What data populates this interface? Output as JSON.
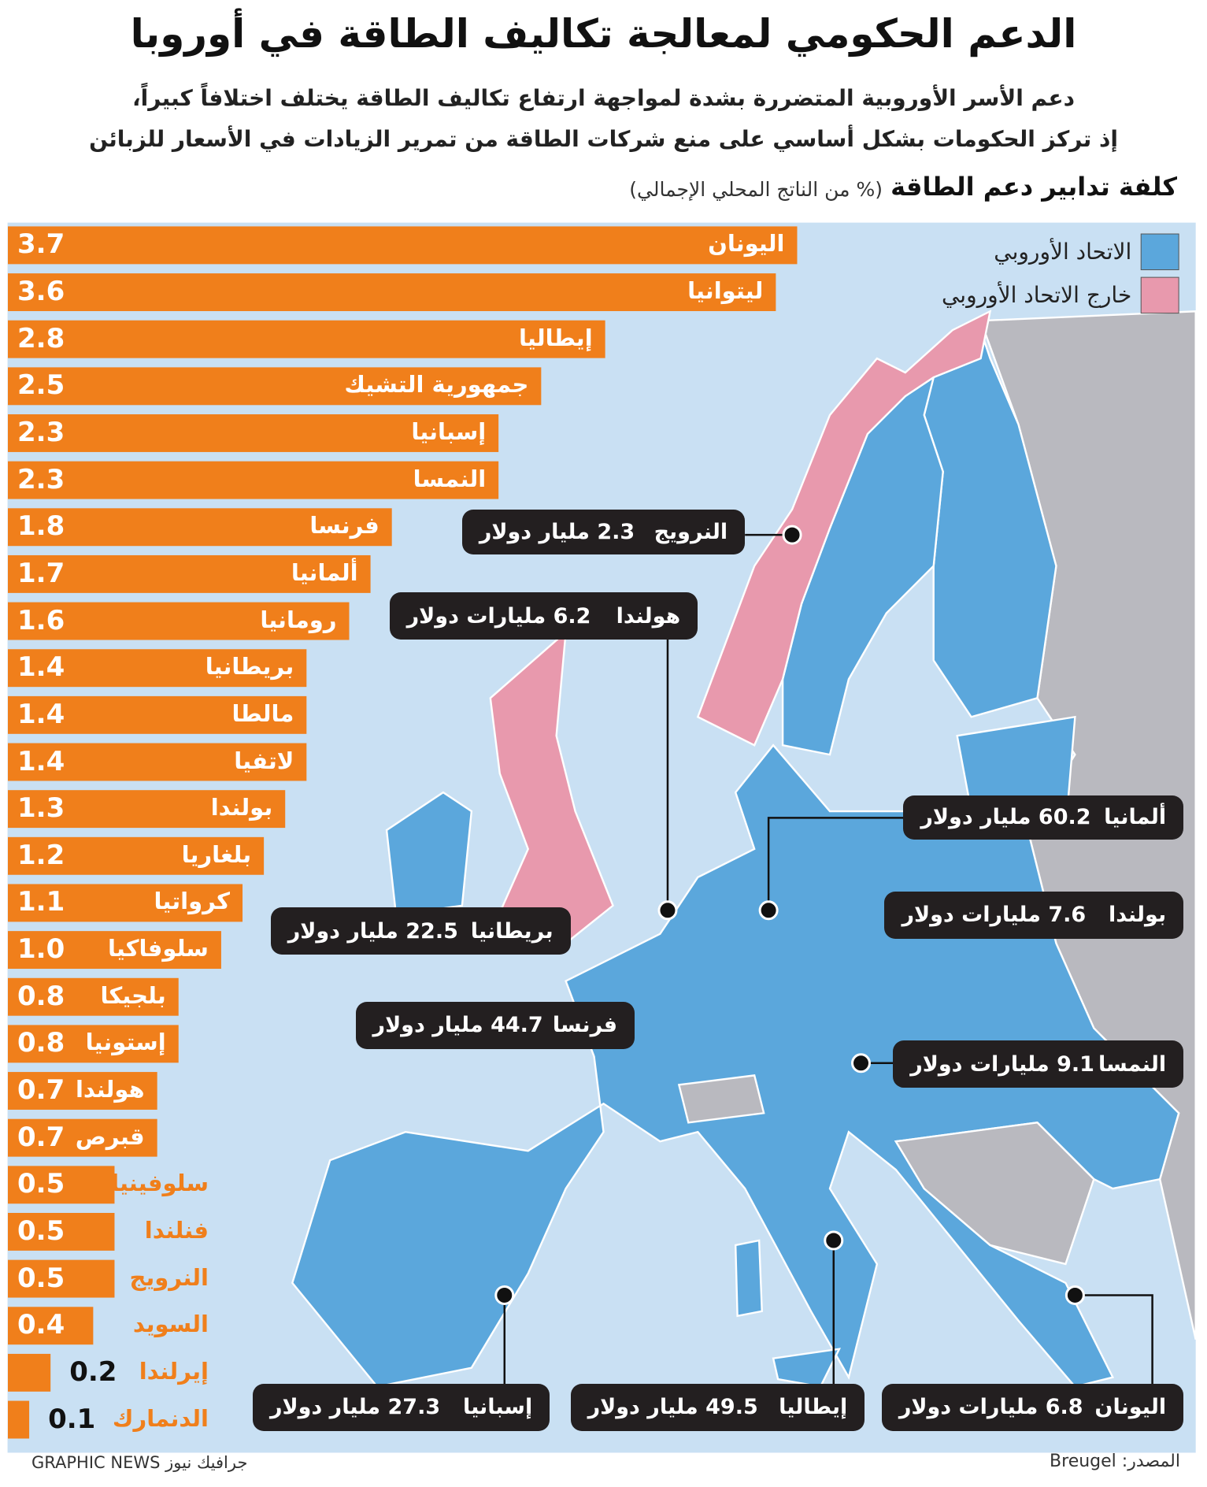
{
  "chart_data": {
    "type": "bar",
    "title": "الدعم الحكومي لمعالجة تكاليف الطاقة في أوروبا",
    "subtitle": [
      "دعم الأسر الأوروبية المتضررة بشدة لمواجهة ارتفاع تكاليف الطاقة يختلف اختلافاً كبيراً،",
      "إذ تركز الحكومات بشكل أساسي على منع شركات الطاقة من تمرير الزيادات في الأسعار للزبائن"
    ],
    "axis_title": "كلفة تدابير دعم الطاقة",
    "axis_unit": "(% من الناتج المحلي الإجمالي)",
    "categories": [
      "اليونان",
      "ليتوانيا",
      "إيطاليا",
      "جمهورية التشيك",
      "إسبانيا",
      "النمسا",
      "فرنسا",
      "ألمانيا",
      "رومانيا",
      "بريطانيا",
      "مالطا",
      "لاتفيا",
      "بولندا",
      "بلغاريا",
      "كرواتيا",
      "سلوفاكيا",
      "بلجيكا",
      "إستونيا",
      "هولندا",
      "قبرص",
      "سلوفينيا",
      "فنلندا",
      "النرويج",
      "السويد",
      "إيرلندا",
      "الدنمارك"
    ],
    "values": [
      3.7,
      3.6,
      2.8,
      2.5,
      2.3,
      2.3,
      1.8,
      1.7,
      1.6,
      1.4,
      1.4,
      1.4,
      1.3,
      1.2,
      1.1,
      1.0,
      0.8,
      0.8,
      0.7,
      0.7,
      0.5,
      0.5,
      0.5,
      0.4,
      0.2,
      0.1
    ],
    "value_labels": [
      "3.7",
      "3.6",
      "2.8",
      "2.5",
      "2.3",
      "2.3",
      "1.8",
      "1.7",
      "1.6",
      "1.4",
      "1.4",
      "1.4",
      "1.3",
      "1.2",
      "1.1",
      "1.0",
      "0.8",
      "0.8",
      "0.7",
      "0.7",
      "0.5",
      "0.5",
      "0.5",
      "0.4",
      "0.2",
      "0.1"
    ],
    "color": "#f07f1b",
    "legend": [
      {
        "name": "الاتحاد الأوروبي",
        "color": "#5ba7dc"
      },
      {
        "name": "خارج الاتحاد الأوروبي",
        "color": "#e899ad"
      }
    ],
    "annotations": [
      {
        "country": "النرويج",
        "text": "2.3 مليار دولار"
      },
      {
        "country": "هولندا",
        "text": "6.2 مليارات دولار"
      },
      {
        "country": "ألمانيا",
        "text": "60.2 مليار دولار"
      },
      {
        "country": "بولندا",
        "text": "7.6 مليارات دولار"
      },
      {
        "country": "بريطانيا",
        "text": "22.5 مليار دولار"
      },
      {
        "country": "فرنسا",
        "text": "44.7 مليار دولار"
      },
      {
        "country": "النمسا",
        "text": "9.1 مليارات دولار"
      },
      {
        "country": "إسبانيا",
        "text": "27.3 مليار دولار"
      },
      {
        "country": "إيطاليا",
        "text": "49.5 مليار دولار"
      },
      {
        "country": "اليونان",
        "text": "6.8 مليارات دولار"
      }
    ],
    "source": "المصدر: Breugel",
    "credit": "GRAPHIC NEWS جرافيك نيوز"
  }
}
